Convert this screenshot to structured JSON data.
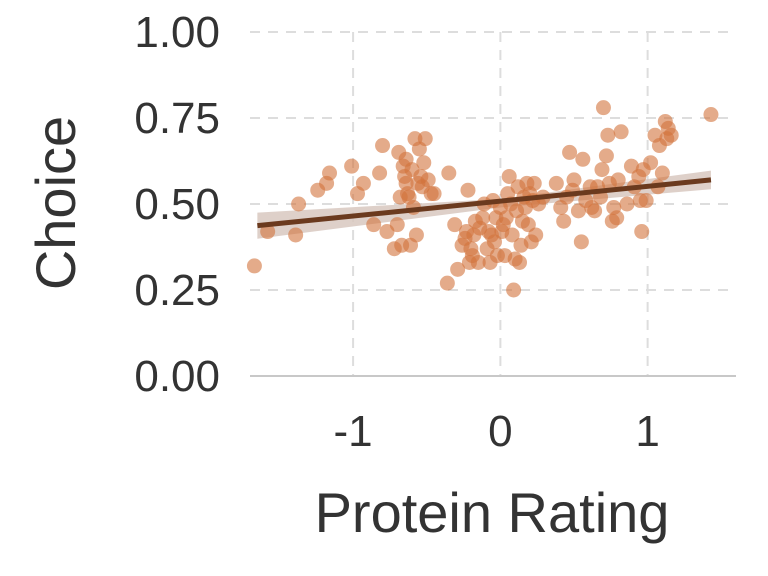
{
  "chart_data": {
    "type": "scatter",
    "title": "",
    "xlabel": "Protein Rating",
    "ylabel": "Choice",
    "xlim": [
      -1.7,
      1.6
    ],
    "ylim": [
      0,
      1
    ],
    "x_ticks": [
      -1,
      0,
      1
    ],
    "x_tick_labels": [
      "-1",
      "0",
      "1"
    ],
    "y_ticks": [
      0,
      0.25,
      0.5,
      0.75,
      1
    ],
    "y_tick_labels": [
      "0.00",
      "0.25",
      "0.50",
      "0.75",
      "1.00"
    ],
    "grid": true,
    "colors": {
      "points": "#D2733C",
      "fit_line": "#6B3A1E",
      "confidence_band": "#D8C8C0",
      "grid": "#DDDDDD",
      "axis": "#C8C8C8",
      "text": "#333333"
    },
    "fit_line": {
      "x": [
        -1.65,
        1.43
      ],
      "y": [
        0.437,
        0.57
      ]
    },
    "confidence_band": {
      "x": [
        -1.65,
        0,
        1.43
      ],
      "upper": [
        0.475,
        0.515,
        0.597
      ],
      "lower": [
        0.399,
        0.49,
        0.543
      ]
    },
    "points": [
      [
        -1.67,
        0.32
      ],
      [
        -1.58,
        0.42
      ],
      [
        -1.39,
        0.41
      ],
      [
        -1.37,
        0.5
      ],
      [
        -1.24,
        0.54
      ],
      [
        -1.18,
        0.56
      ],
      [
        -1.16,
        0.59
      ],
      [
        -1.01,
        0.61
      ],
      [
        -0.97,
        0.53
      ],
      [
        -0.93,
        0.56
      ],
      [
        -0.86,
        0.44
      ],
      [
        -0.82,
        0.59
      ],
      [
        -0.8,
        0.67
      ],
      [
        -0.77,
        0.42
      ],
      [
        -0.72,
        0.37
      ],
      [
        -0.7,
        0.44
      ],
      [
        -0.69,
        0.65
      ],
      [
        -0.68,
        0.52
      ],
      [
        -0.67,
        0.38
      ],
      [
        -0.66,
        0.61
      ],
      [
        -0.65,
        0.58
      ],
      [
        -0.64,
        0.56
      ],
      [
        -0.64,
        0.63
      ],
      [
        -0.63,
        0.53
      ],
      [
        -0.62,
        0.52
      ],
      [
        -0.61,
        0.38
      ],
      [
        -0.6,
        0.6
      ],
      [
        -0.59,
        0.49
      ],
      [
        -0.58,
        0.69
      ],
      [
        -0.57,
        0.41
      ],
      [
        -0.56,
        0.56
      ],
      [
        -0.55,
        0.66
      ],
      [
        -0.54,
        0.58
      ],
      [
        -0.53,
        0.55
      ],
      [
        -0.52,
        0.62
      ],
      [
        -0.51,
        0.69
      ],
      [
        -0.49,
        0.57
      ],
      [
        -0.47,
        0.53
      ],
      [
        -0.45,
        0.53
      ],
      [
        -0.36,
        0.27
      ],
      [
        -0.35,
        0.59
      ],
      [
        -0.31,
        0.44
      ],
      [
        -0.29,
        0.31
      ],
      [
        -0.26,
        0.38
      ],
      [
        -0.24,
        0.4
      ],
      [
        -0.23,
        0.42
      ],
      [
        -0.22,
        0.54
      ],
      [
        -0.21,
        0.33
      ],
      [
        -0.2,
        0.37
      ],
      [
        -0.19,
        0.35
      ],
      [
        -0.18,
        0.41
      ],
      [
        -0.17,
        0.45
      ],
      [
        -0.15,
        0.33
      ],
      [
        -0.14,
        0.43
      ],
      [
        -0.12,
        0.46
      ],
      [
        -0.11,
        0.5
      ],
      [
        -0.09,
        0.37
      ],
      [
        -0.08,
        0.42
      ],
      [
        -0.07,
        0.33
      ],
      [
        -0.06,
        0.41
      ],
      [
        -0.05,
        0.51
      ],
      [
        -0.04,
        0.39
      ],
      [
        -0.03,
        0.46
      ],
      [
        -0.02,
        0.35
      ],
      [
        0.0,
        0.49
      ],
      [
        0.01,
        0.42
      ],
      [
        0.02,
        0.44
      ],
      [
        0.03,
        0.35
      ],
      [
        0.04,
        0.46
      ],
      [
        0.05,
        0.53
      ],
      [
        0.06,
        0.58
      ],
      [
        0.07,
        0.5
      ],
      [
        0.08,
        0.41
      ],
      [
        0.09,
        0.25
      ],
      [
        0.1,
        0.34
      ],
      [
        0.11,
        0.48
      ],
      [
        0.12,
        0.55
      ],
      [
        0.13,
        0.33
      ],
      [
        0.14,
        0.38
      ],
      [
        0.15,
        0.45
      ],
      [
        0.16,
        0.52
      ],
      [
        0.17,
        0.49
      ],
      [
        0.18,
        0.56
      ],
      [
        0.19,
        0.44
      ],
      [
        0.2,
        0.53
      ],
      [
        0.21,
        0.39
      ],
      [
        0.22,
        0.51
      ],
      [
        0.23,
        0.56
      ],
      [
        0.24,
        0.41
      ],
      [
        0.26,
        0.5
      ],
      [
        0.29,
        0.52
      ],
      [
        0.38,
        0.56
      ],
      [
        0.41,
        0.49
      ],
      [
        0.43,
        0.45
      ],
      [
        0.45,
        0.52
      ],
      [
        0.47,
        0.65
      ],
      [
        0.49,
        0.54
      ],
      [
        0.5,
        0.57
      ],
      [
        0.53,
        0.48
      ],
      [
        0.55,
        0.39
      ],
      [
        0.56,
        0.63
      ],
      [
        0.58,
        0.51
      ],
      [
        0.61,
        0.55
      ],
      [
        0.62,
        0.49
      ],
      [
        0.64,
        0.48
      ],
      [
        0.66,
        0.55
      ],
      [
        0.68,
        0.52
      ],
      [
        0.69,
        0.6
      ],
      [
        0.7,
        0.78
      ],
      [
        0.72,
        0.64
      ],
      [
        0.73,
        0.7
      ],
      [
        0.74,
        0.56
      ],
      [
        0.76,
        0.45
      ],
      [
        0.77,
        0.49
      ],
      [
        0.79,
        0.46
      ],
      [
        0.8,
        0.57
      ],
      [
        0.82,
        0.71
      ],
      [
        0.86,
        0.5
      ],
      [
        0.89,
        0.61
      ],
      [
        0.91,
        0.55
      ],
      [
        0.94,
        0.58
      ],
      [
        0.95,
        0.51
      ],
      [
        0.96,
        0.42
      ],
      [
        0.97,
        0.6
      ],
      [
        0.99,
        0.51
      ],
      [
        1.02,
        0.62
      ],
      [
        1.05,
        0.7
      ],
      [
        1.07,
        0.55
      ],
      [
        1.08,
        0.67
      ],
      [
        1.1,
        0.59
      ],
      [
        1.12,
        0.74
      ],
      [
        1.13,
        0.69
      ],
      [
        1.14,
        0.72
      ],
      [
        1.16,
        0.7
      ],
      [
        1.43,
        0.76
      ]
    ]
  }
}
